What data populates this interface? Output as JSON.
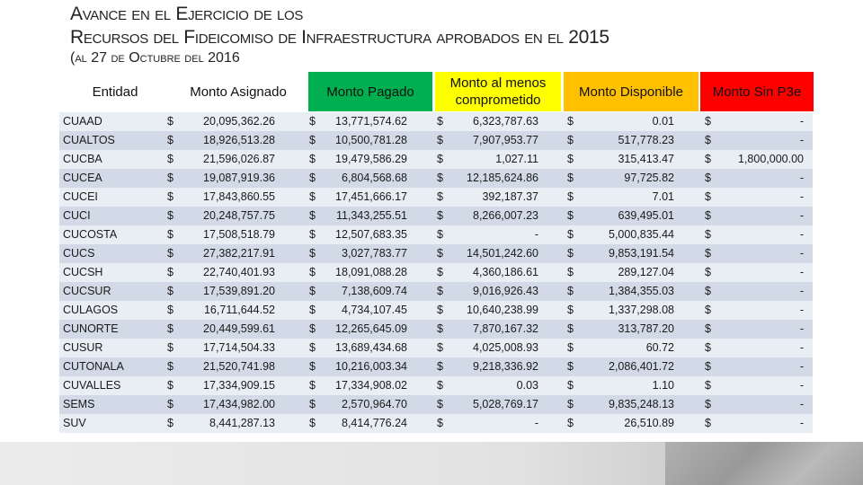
{
  "title": {
    "line1": "Avance en el Ejercicio de los",
    "line2": "Recursos del Fideicomiso de Infraestructura aprobados en el 2015",
    "line3": "(al 27 de Octubre del 2016"
  },
  "headers": [
    {
      "label": "Entidad",
      "color": "#ffffff"
    },
    {
      "label": "Monto Asignado",
      "color": "#ffffff"
    },
    {
      "label": "Monto Pagado",
      "color": "#00b050"
    },
    {
      "label": "Monto al menos comprometido",
      "color": "#ffff00"
    },
    {
      "label": "Monto Disponible",
      "color": "#ffc000"
    },
    {
      "label": "Monto Sin P3e",
      "color": "#ff0000"
    }
  ],
  "currency": "$",
  "rows": [
    {
      "name": "CUAAD",
      "asignado": "20,095,362.26",
      "pagado": "13,771,574.62",
      "comprometido": "6,323,787.63",
      "disponible": "0.01",
      "sinp3e": "-"
    },
    {
      "name": "CUALTOS",
      "asignado": "18,926,513.28",
      "pagado": "10,500,781.28",
      "comprometido": "7,907,953.77",
      "disponible": "517,778.23",
      "sinp3e": "-"
    },
    {
      "name": "CUCBA",
      "asignado": "21,596,026.87",
      "pagado": "19,479,586.29",
      "comprometido": "1,027.11",
      "disponible": "315,413.47",
      "sinp3e": "1,800,000.00"
    },
    {
      "name": "CUCEA",
      "asignado": "19,087,919.36",
      "pagado": "6,804,568.68",
      "comprometido": "12,185,624.86",
      "disponible": "97,725.82",
      "sinp3e": "-"
    },
    {
      "name": "CUCEI",
      "asignado": "17,843,860.55",
      "pagado": "17,451,666.17",
      "comprometido": "392,187.37",
      "disponible": "7.01",
      "sinp3e": "-"
    },
    {
      "name": "CUCI",
      "asignado": "20,248,757.75",
      "pagado": "11,343,255.51",
      "comprometido": "8,266,007.23",
      "disponible": "639,495.01",
      "sinp3e": "-"
    },
    {
      "name": "CUCOSTA",
      "asignado": "17,508,518.79",
      "pagado": "12,507,683.35",
      "comprometido": "-",
      "disponible": "5,000,835.44",
      "sinp3e": "-"
    },
    {
      "name": "CUCS",
      "asignado": "27,382,217.91",
      "pagado": "3,027,783.77",
      "comprometido": "14,501,242.60",
      "disponible": "9,853,191.54",
      "sinp3e": "-"
    },
    {
      "name": "CUCSH",
      "asignado": "22,740,401.93",
      "pagado": "18,091,088.28",
      "comprometido": "4,360,186.61",
      "disponible": "289,127.04",
      "sinp3e": "-"
    },
    {
      "name": "CUCSUR",
      "asignado": "17,539,891.20",
      "pagado": "7,138,609.74",
      "comprometido": "9,016,926.43",
      "disponible": "1,384,355.03",
      "sinp3e": "-"
    },
    {
      "name": "CULAGOS",
      "asignado": "16,711,644.52",
      "pagado": "4,734,107.45",
      "comprometido": "10,640,238.99",
      "disponible": "1,337,298.08",
      "sinp3e": "-"
    },
    {
      "name": "CUNORTE",
      "asignado": "20,449,599.61",
      "pagado": "12,265,645.09",
      "comprometido": "7,870,167.32",
      "disponible": "313,787.20",
      "sinp3e": "-"
    },
    {
      "name": "CUSUR",
      "asignado": "17,714,504.33",
      "pagado": "13,689,434.68",
      "comprometido": "4,025,008.93",
      "disponible": "60.72",
      "sinp3e": "-"
    },
    {
      "name": "CUTONALA",
      "asignado": "21,520,741.98",
      "pagado": "10,216,003.34",
      "comprometido": "9,218,336.92",
      "disponible": "2,086,401.72",
      "sinp3e": "-"
    },
    {
      "name": "CUVALLES",
      "asignado": "17,334,909.15",
      "pagado": "17,334,908.02",
      "comprometido": "0.03",
      "disponible": "1.10",
      "sinp3e": "-"
    },
    {
      "name": "SEMS",
      "asignado": "17,434,982.00",
      "pagado": "2,570,964.70",
      "comprometido": "5,028,769.17",
      "disponible": "9,835,248.13",
      "sinp3e": "-"
    },
    {
      "name": "SUV",
      "asignado": "8,441,287.13",
      "pagado": "8,414,776.24",
      "comprometido": "-",
      "disponible": "26,510.89",
      "sinp3e": "-"
    }
  ]
}
